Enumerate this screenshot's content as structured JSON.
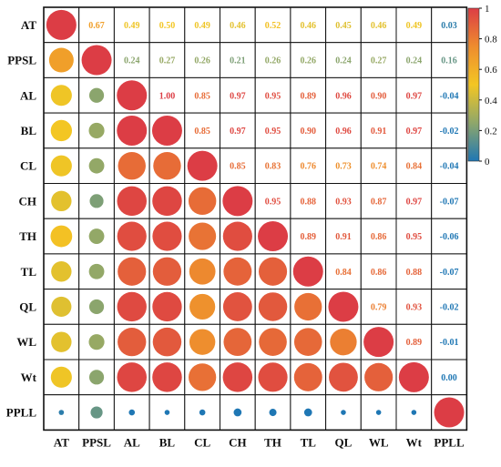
{
  "chart_data": {
    "type": "heatmap",
    "variables": [
      "AT",
      "PPSL",
      "AL",
      "BL",
      "CL",
      "CH",
      "TH",
      "TL",
      "QL",
      "WL",
      "Wt",
      "PPLL"
    ],
    "matrix": [
      [
        1.0,
        0.67,
        0.49,
        0.5,
        0.49,
        0.46,
        0.52,
        0.46,
        0.45,
        0.46,
        0.49,
        0.03
      ],
      [
        0.67,
        1.0,
        0.24,
        0.27,
        0.26,
        0.21,
        0.26,
        0.26,
        0.24,
        0.27,
        0.24,
        0.16
      ],
      [
        0.49,
        0.24,
        1.0,
        1.0,
        0.85,
        0.97,
        0.95,
        0.89,
        0.96,
        0.9,
        0.97,
        -0.04
      ],
      [
        0.5,
        0.27,
        1.0,
        1.0,
        0.85,
        0.97,
        0.95,
        0.9,
        0.96,
        0.91,
        0.97,
        -0.02
      ],
      [
        0.49,
        0.26,
        0.85,
        0.85,
        1.0,
        0.85,
        0.83,
        0.76,
        0.73,
        0.74,
        0.84,
        -0.04
      ],
      [
        0.46,
        0.21,
        0.97,
        0.97,
        0.85,
        1.0,
        0.95,
        0.88,
        0.93,
        0.87,
        0.97,
        -0.07
      ],
      [
        0.52,
        0.26,
        0.95,
        0.95,
        0.83,
        0.95,
        1.0,
        0.89,
        0.91,
        0.86,
        0.95,
        -0.06
      ],
      [
        0.46,
        0.26,
        0.89,
        0.9,
        0.76,
        0.88,
        0.89,
        1.0,
        0.84,
        0.86,
        0.88,
        -0.07
      ],
      [
        0.45,
        0.24,
        0.96,
        0.96,
        0.73,
        0.93,
        0.91,
        0.84,
        1.0,
        0.79,
        0.93,
        -0.02
      ],
      [
        0.46,
        0.27,
        0.9,
        0.91,
        0.74,
        0.87,
        0.86,
        0.86,
        0.79,
        1.0,
        0.89,
        -0.01
      ],
      [
        0.49,
        0.24,
        0.97,
        0.97,
        0.84,
        0.97,
        0.95,
        0.88,
        0.93,
        0.89,
        1.0,
        0.0
      ],
      [
        0.03,
        0.16,
        -0.04,
        -0.02,
        -0.04,
        -0.07,
        -0.06,
        -0.07,
        -0.02,
        -0.01,
        0.0,
        1.0
      ]
    ],
    "lower_triangle": "circles",
    "upper_triangle": "numbers",
    "diagonal": "circles",
    "colorbar": {
      "range": [
        0,
        1
      ],
      "ticks": [
        0,
        0.2,
        0.4,
        0.6,
        0.8,
        1
      ],
      "tick_labels": [
        "0",
        "0.2",
        "0.4",
        "0.6",
        "0.8",
        "1"
      ],
      "colors": [
        "#1f77b4",
        "#8fa76a",
        "#f3c623",
        "#ee8c2e",
        "#dc3d45"
      ]
    },
    "grid": true
  }
}
